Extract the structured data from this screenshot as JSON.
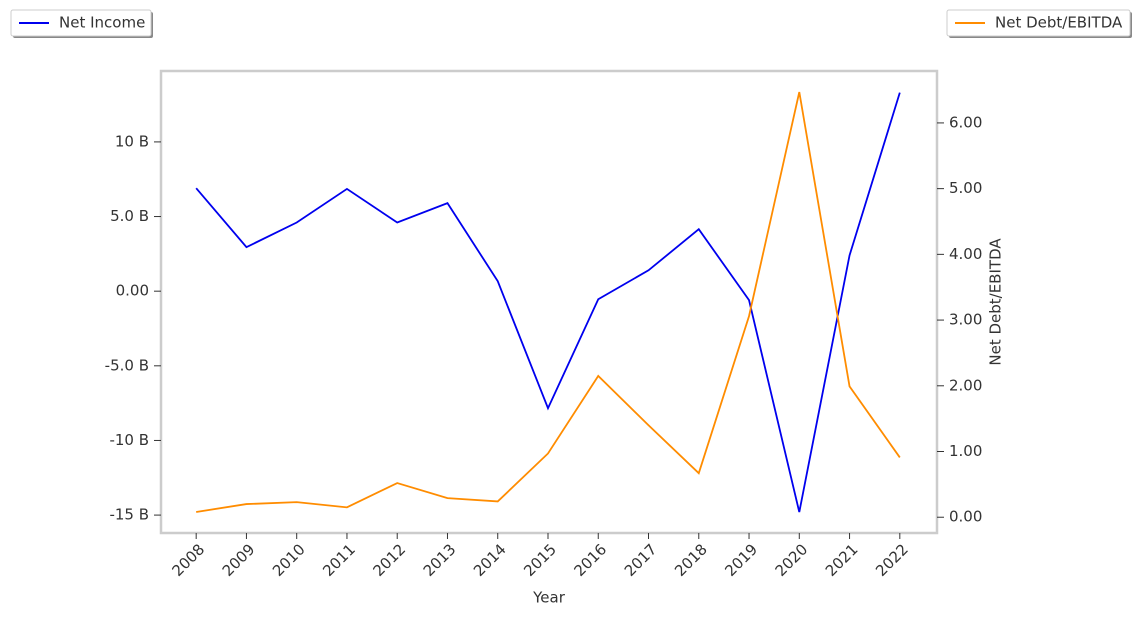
{
  "chart_data": {
    "type": "line",
    "x_label": "Year",
    "y2_label": "Net Debt/EBITDA",
    "x": [
      2008,
      2009,
      2010,
      2011,
      2012,
      2013,
      2014,
      2015,
      2016,
      2017,
      2018,
      2019,
      2020,
      2021,
      2022
    ],
    "xlim": [
      2007.3,
      2022.74
    ],
    "xticks": [
      2008,
      2009,
      2010,
      2011,
      2012,
      2013,
      2014,
      2015,
      2016,
      2017,
      2018,
      2019,
      2020,
      2021,
      2022
    ],
    "ylim": [
      -16200000000,
      14750000000
    ],
    "yticks": [
      {
        "value": -15000000000,
        "label": "-15 B"
      },
      {
        "value": -10000000000,
        "label": "-10 B"
      },
      {
        "value": -5000000000,
        "label": "-5.0 B"
      },
      {
        "value": 0,
        "label": "0.00"
      },
      {
        "value": 5000000000,
        "label": "5.0 B"
      },
      {
        "value": 10000000000,
        "label": "10 B"
      }
    ],
    "y2lim": [
      -0.24,
      6.79
    ],
    "y2ticks": [
      {
        "value": 0,
        "label": "0.00"
      },
      {
        "value": 1,
        "label": "1.00"
      },
      {
        "value": 2,
        "label": "2.00"
      },
      {
        "value": 3,
        "label": "3.00"
      },
      {
        "value": 4,
        "label": "4.00"
      },
      {
        "value": 5,
        "label": "5.00"
      },
      {
        "value": 6,
        "label": "6.00"
      }
    ],
    "series": [
      {
        "name": "Net Income",
        "color": "#0000ee",
        "axis": "y",
        "values": [
          6900000000,
          2950000000,
          4600000000,
          6850000000,
          4600000000,
          5900000000,
          670000000,
          -7840000000,
          -540000000,
          1400000000,
          4150000000,
          -600000000,
          -14800000000,
          2400000000,
          13300000000
        ]
      },
      {
        "name": "Net Debt/EBITDA",
        "color": "#ff8c00",
        "axis": "y2",
        "values": [
          0.08,
          0.2,
          0.23,
          0.15,
          0.52,
          0.29,
          0.24,
          0.97,
          2.15,
          1.4,
          0.67,
          3.06,
          6.47,
          1.99,
          0.91
        ]
      }
    ]
  }
}
